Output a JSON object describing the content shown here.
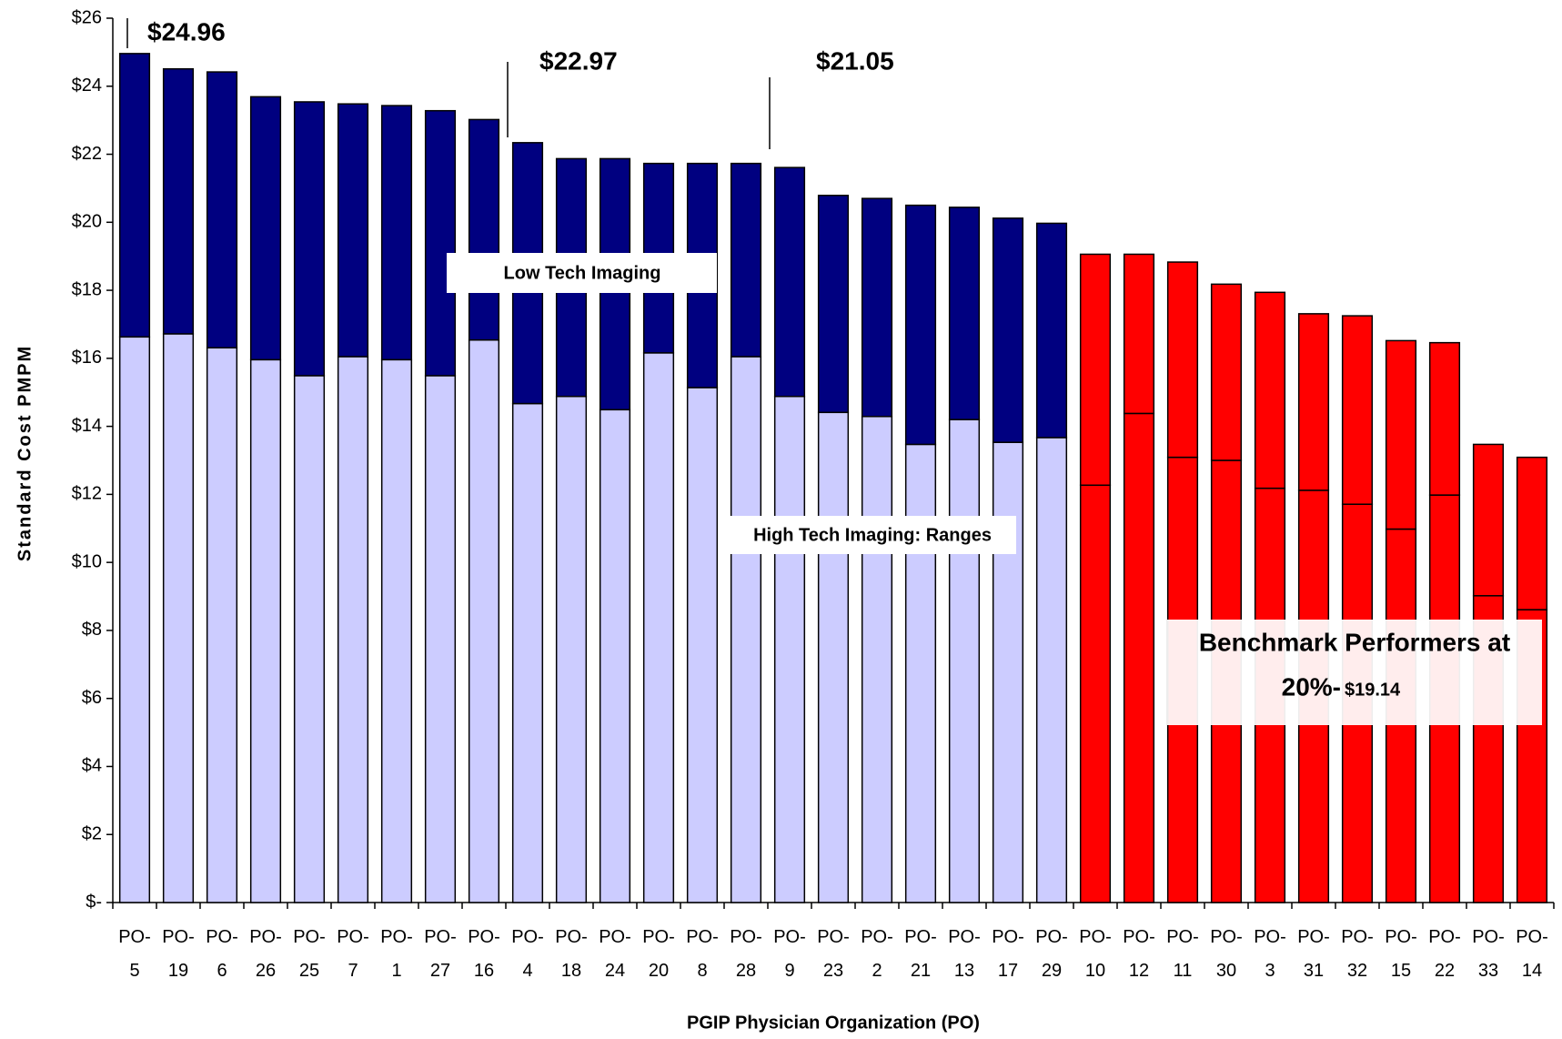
{
  "chart_data": {
    "type": "stacked_bar",
    "y_label": "Standard Cost PMPM",
    "x_label": "PGIP Physician Organization (PO)",
    "categories": [
      "PO-5",
      "PO-19",
      "PO-6",
      "PO-26",
      "PO-25",
      "PO-7",
      "PO-1",
      "PO-27",
      "PO-16",
      "PO-4",
      "PO-18",
      "PO-24",
      "PO-20",
      "PO-8",
      "PO-28",
      "PO-9",
      "PO-23",
      "PO-2",
      "PO-21",
      "PO-13",
      "PO-17",
      "PO-29",
      "PO-10",
      "PO-12",
      "PO-11",
      "PO-30",
      "PO-3",
      "PO-31",
      "PO-32",
      "PO-15",
      "PO-22",
      "PO-33",
      "PO-14"
    ],
    "series": [
      {
        "name": "High Tech Imaging: Ranges",
        "colors": [
          "#ccccff",
          "#ccccff",
          "#ccccff",
          "#ccccff",
          "#ccccff",
          "#ccccff",
          "#ccccff",
          "#ccccff",
          "#ccccff",
          "#ccccff",
          "#ccccff",
          "#ccccff",
          "#ccccff",
          "#ccccff",
          "#ccccff",
          "#ccccff",
          "#ccccff",
          "#ccccff",
          "#ccccff",
          "#ccccff",
          "#ccccff",
          "#ccccff",
          "#ff0000",
          "#ff0000",
          "#ff0000",
          "#ff0000",
          "#ff0000",
          "#ff0000",
          "#ff0000",
          "#ff0000",
          "#ff0000",
          "#ff0000",
          "#ff0000"
        ],
        "values": [
          16.63,
          16.72,
          16.31,
          15.96,
          15.49,
          16.05,
          15.96,
          15.49,
          16.54,
          14.67,
          14.88,
          14.49,
          16.16,
          15.14,
          16.05,
          14.88,
          14.41,
          14.29,
          13.47,
          14.2,
          13.53,
          13.67,
          12.27,
          14.38,
          13.09,
          13.0,
          12.18,
          12.12,
          11.71,
          10.98,
          11.98,
          9.02,
          8.61
        ]
      },
      {
        "name": "Low Tech Imaging",
        "colors": [
          "#000080",
          "#000080",
          "#000080",
          "#000080",
          "#000080",
          "#000080",
          "#000080",
          "#000080",
          "#000080",
          "#000080",
          "#000080",
          "#000080",
          "#000080",
          "#000080",
          "#000080",
          "#000080",
          "#000080",
          "#000080",
          "#000080",
          "#000080",
          "#000080",
          "#000080",
          "#ff0000",
          "#ff0000",
          "#ff0000",
          "#ff0000",
          "#ff0000",
          "#ff0000",
          "#ff0000",
          "#ff0000",
          "#ff0000",
          "#ff0000",
          "#ff0000"
        ],
        "values": [
          8.33,
          7.79,
          8.11,
          7.73,
          8.05,
          7.43,
          7.47,
          7.79,
          6.48,
          7.67,
          6.99,
          7.38,
          5.57,
          6.59,
          5.68,
          6.73,
          6.38,
          6.41,
          7.03,
          6.24,
          6.59,
          6.3,
          6.79,
          4.68,
          5.74,
          5.18,
          5.76,
          5.19,
          5.54,
          5.54,
          4.48,
          4.45,
          4.48
        ]
      }
    ],
    "annotations": [
      "$24.96",
      "$22.97",
      "$21.05",
      "Benchmark Performers at",
      "20%-",
      "$19.14"
    ],
    "ylim": [
      0,
      26
    ],
    "yticks": [
      {
        "value": 0,
        "label": "$-"
      },
      {
        "value": 2,
        "label": "$2"
      },
      {
        "value": 4,
        "label": "$4"
      },
      {
        "value": 6,
        "label": "$6"
      },
      {
        "value": 8,
        "label": "$8"
      },
      {
        "value": 10,
        "label": "$10"
      },
      {
        "value": 12,
        "label": "$12"
      },
      {
        "value": 14,
        "label": "$14"
      },
      {
        "value": 16,
        "label": "$16"
      },
      {
        "value": 18,
        "label": "$18"
      },
      {
        "value": 20,
        "label": "$20"
      },
      {
        "value": 22,
        "label": "$22"
      },
      {
        "value": 24,
        "label": "$24"
      },
      {
        "value": 26,
        "label": "$26"
      }
    ],
    "grid": false
  }
}
